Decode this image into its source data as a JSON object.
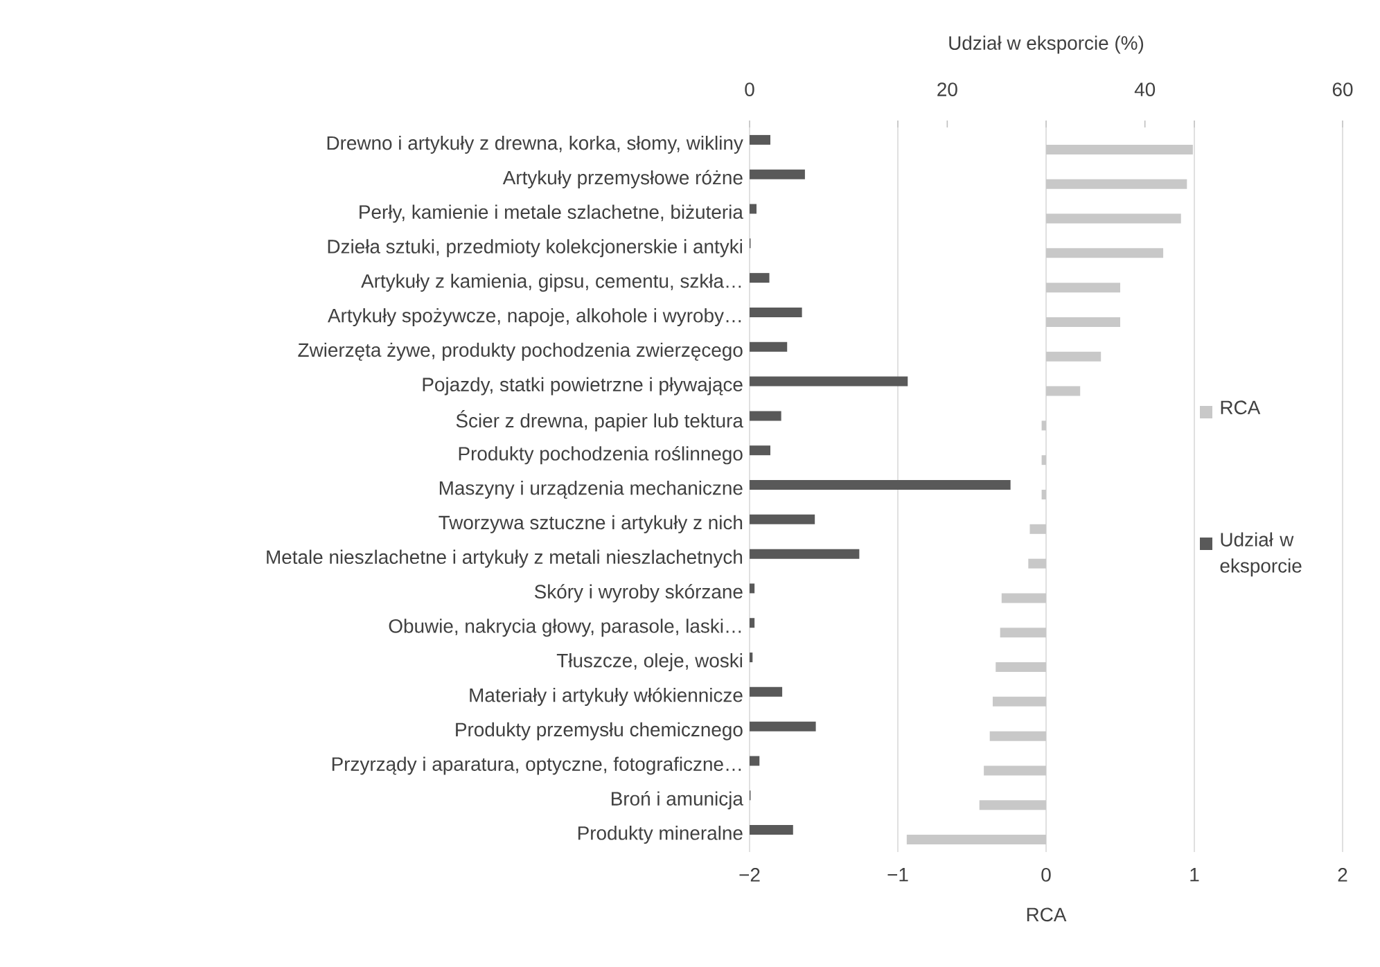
{
  "chart_data": {
    "type": "bar",
    "orientation": "horizontal",
    "categories": [
      "Drewno i artykuły z drewna, korka, słomy, wikliny",
      "Artykuły przemysłowe różne",
      "Perły, kamienie i metale szlachetne, biżuteria",
      "Dzieła sztuki, przedmioty kolekcjonerskie i antyki",
      "Artykuły z kamienia, gipsu, cementu, szkła…",
      "Artykuły spożywcze, napoje, alkohole i wyroby…",
      "Zwierzęta żywe, produkty pochodzenia zwierzęcego",
      "Pojazdy, statki powietrzne i pływające",
      "Ścier z drewna, papier lub tektura",
      "Produkty pochodzenia roślinnego",
      "Maszyny i urządzenia mechaniczne",
      "Tworzywa sztuczne i artykuły z nich",
      "Metale nieszlachetne i artykuły z metali nieszlachetnych",
      "Skóry i wyroby skórzane",
      "Obuwie, nakrycia głowy, parasole, laski…",
      "Tłuszcze, oleje, woski",
      "Materiały i artykuły włókiennicze",
      "Produkty przemysłu chemicznego",
      "Przyrządy i aparatura, optyczne, fotograficzne…",
      "Broń i amunicja",
      "Produkty mineralne"
    ],
    "series": [
      {
        "name": "RCA",
        "color": "#c8c8c8",
        "values": [
          0.99,
          0.95,
          0.91,
          0.79,
          0.5,
          0.5,
          0.37,
          0.23,
          -0.03,
          -0.03,
          -0.03,
          -0.11,
          -0.12,
          -0.3,
          -0.31,
          -0.34,
          -0.36,
          -0.38,
          -0.42,
          -0.45,
          -0.94
        ]
      },
      {
        "name": "Udział w eksporcie",
        "color": "#595959",
        "axis": "x2",
        "values": [
          2.1,
          5.6,
          0.7,
          0.1,
          2.0,
          5.3,
          3.8,
          16.0,
          3.2,
          2.1,
          26.4,
          6.6,
          11.1,
          0.5,
          0.5,
          0.3,
          3.3,
          6.7,
          1.0,
          0.1,
          4.4
        ]
      }
    ],
    "xlabel": "RCA",
    "x2label": "Udział w eksporcie (%)",
    "xlim": [
      -2,
      2
    ],
    "xticks": [
      {
        "value": -2,
        "label": "−2"
      },
      {
        "value": -1,
        "label": "−1"
      },
      0,
      1,
      2
    ],
    "x2lim": [
      0,
      60
    ],
    "x2ticks": [
      0,
      {
        "value": 15,
        "label": null
      },
      20,
      {
        "value": 30,
        "label": null
      },
      40,
      {
        "value": 45,
        "label": null
      },
      60
    ],
    "grid": "x",
    "legend": "right"
  }
}
